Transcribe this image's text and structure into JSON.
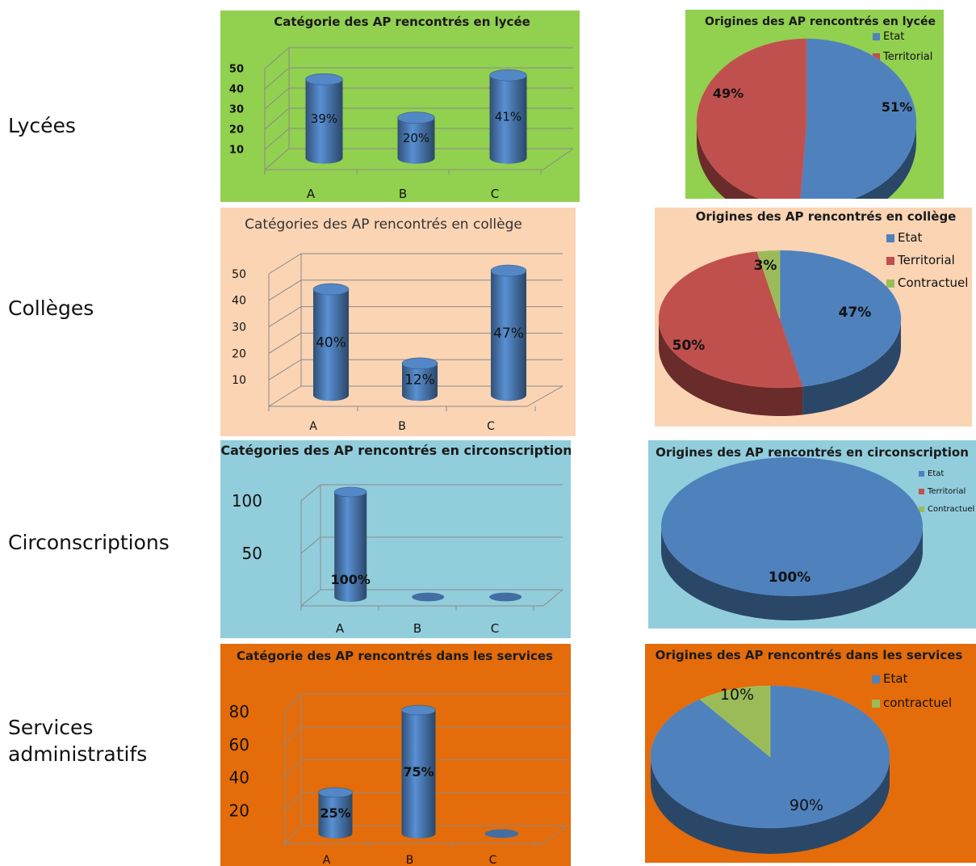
{
  "row_labels": {
    "lycees": "Lycées",
    "colleges": "Collèges",
    "circonscriptions": "Circonscriptions",
    "services_line1": "Services",
    "services_line2": "administratifs"
  },
  "chart_data": [
    {
      "type": "bar",
      "title": "Catégorie des AP rencontrés en lycée",
      "categories": [
        "A",
        "B",
        "C"
      ],
      "values": [
        39,
        20,
        41
      ],
      "labels": [
        "39%",
        "20%",
        "41%"
      ],
      "yticks": [
        10,
        20,
        30,
        40,
        50
      ],
      "ylim": [
        0,
        50
      ],
      "xlabel": "",
      "ylabel": "",
      "background": "#92d050",
      "bar_color": "#4f81bd"
    },
    {
      "type": "pie",
      "title": "Origines des AP rencontrés en lycée",
      "slices": [
        {
          "name": "Etat",
          "value": 51,
          "label": "51%",
          "color": "#4f81bd"
        },
        {
          "name": "Territorial",
          "value": 49,
          "label": "49%",
          "color": "#c0504d"
        }
      ],
      "legend": "top-right",
      "background": "#92d050"
    },
    {
      "type": "bar",
      "title": "Catégories des AP rencontrés en collège",
      "categories": [
        "A",
        "B",
        "C"
      ],
      "values": [
        40,
        12,
        47
      ],
      "labels": [
        "40%",
        "12%",
        "47%"
      ],
      "yticks": [
        10,
        20,
        30,
        40,
        50
      ],
      "ylim": [
        0,
        50
      ],
      "xlabel": "",
      "ylabel": "",
      "background": "#fbd4b4",
      "bar_color": "#4f81bd"
    },
    {
      "type": "pie",
      "title": "Origines des AP rencontrés en collège",
      "slices": [
        {
          "name": "Etat",
          "value": 47,
          "label": "47%",
          "color": "#4f81bd"
        },
        {
          "name": "Territorial",
          "value": 50,
          "label": "50%",
          "color": "#c0504d"
        },
        {
          "name": "Contractuel",
          "value": 3,
          "label": "3%",
          "color": "#9bbb59"
        }
      ],
      "legend": "top-right",
      "background": "#fbd4b4"
    },
    {
      "type": "bar",
      "title": "Catégories des AP rencontrés en circonscription",
      "categories": [
        "A",
        "B",
        "C"
      ],
      "values": [
        100,
        0,
        0
      ],
      "labels": [
        "100%",
        "",
        ""
      ],
      "yticks": [
        50,
        100
      ],
      "ylim": [
        0,
        100
      ],
      "xlabel": "",
      "ylabel": "",
      "background": "#92cddc",
      "bar_color": "#4f81bd"
    },
    {
      "type": "pie",
      "title": "Origines des AP rencontrés en circonscription",
      "slices": [
        {
          "name": "Etat",
          "value": 100,
          "label": "100%",
          "color": "#4f81bd"
        },
        {
          "name": "Territorial",
          "value": 0,
          "label": "",
          "color": "#c0504d"
        },
        {
          "name": "Contractuel",
          "value": 0,
          "label": "",
          "color": "#9bbb59"
        }
      ],
      "legend": "top-right",
      "background": "#92cddc"
    },
    {
      "type": "bar",
      "title": "Catégorie des AP rencontrés dans les services",
      "categories": [
        "A",
        "B",
        "C"
      ],
      "values": [
        25,
        75,
        0
      ],
      "labels": [
        "25%",
        "75%",
        ""
      ],
      "yticks": [
        20,
        40,
        60,
        80
      ],
      "ylim": [
        0,
        80
      ],
      "xlabel": "",
      "ylabel": "",
      "background": "#e46c0a",
      "bar_color": "#4f81bd"
    },
    {
      "type": "pie",
      "title": "Origines des AP rencontrés dans les services",
      "slices": [
        {
          "name": "Etat",
          "value": 90,
          "label": "90%",
          "color": "#4f81bd"
        },
        {
          "name": "contractuel",
          "value": 10,
          "label": "10%",
          "color": "#9bbb59"
        }
      ],
      "legend": "top-right",
      "background": "#e46c0a"
    }
  ]
}
